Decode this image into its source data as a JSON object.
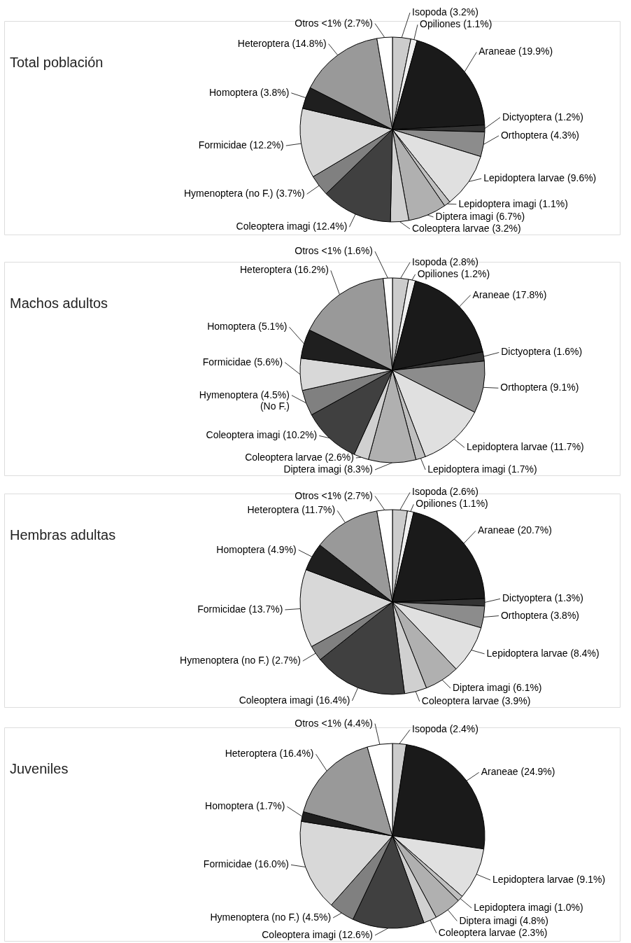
{
  "chart_data": [
    {
      "type": "pie",
      "title": "Total población",
      "categories": [
        "Isopoda (3.2%)",
        "Opiliones (1.1%)",
        "Araneae (19.9%)",
        "Dictyoptera (1.2%)",
        "Orthoptera (4.3%)",
        "Lepidoptera larvae (9.6%)",
        "Lepidoptera imagi (1.1%)",
        "Diptera imagi (6.7%)",
        "Coleoptera larvae (3.2%)",
        "Coleoptera imagi (12.4%)",
        "Hymenoptera (no F.) (3.7%)",
        "Formicidae (12.2%)",
        "Homoptera (3.8%)",
        "Heteroptera (14.8%)",
        "Otros <1% (2.7%)"
      ],
      "values": [
        3.2,
        1.1,
        19.9,
        1.2,
        4.3,
        9.6,
        1.1,
        6.7,
        3.2,
        12.4,
        3.7,
        12.2,
        3.8,
        14.8,
        2.7
      ],
      "colors": [
        "#cccccc",
        "#f0f0f0",
        "#1a1a1a",
        "#333333",
        "#8c8c8c",
        "#e0e0e0",
        "#bfbfbf",
        "#b0b0b0",
        "#d0d0d0",
        "#404040",
        "#808080",
        "#d8d8d8",
        "#1f1f1f",
        "#999999",
        "#ffffff"
      ]
    },
    {
      "type": "pie",
      "title": "Machos adultos",
      "categories": [
        "Isopoda (2.8%)",
        "Opiliones (1.2%)",
        "Araneae (17.8%)",
        "Dictyoptera (1.6%)",
        "Orthoptera (9.1%)",
        "Lepidoptera larvae (11.7%)",
        "Lepidoptera imagi (1.7%)",
        "Diptera imagi (8.3%)",
        "Coleoptera larvae (2.6%)",
        "Coleoptera imagi (10.2%)",
        "Hymenoptera (4.5%)\n(No F.)",
        "Formicidae (5.6%)",
        "Homoptera (5.1%)",
        "Heteroptera (16.2%)",
        "Otros <1% (1.6%)"
      ],
      "values": [
        2.8,
        1.2,
        17.8,
        1.6,
        9.1,
        11.7,
        1.7,
        8.3,
        2.6,
        10.2,
        4.5,
        5.6,
        5.1,
        16.2,
        1.6
      ],
      "colors": [
        "#cccccc",
        "#f0f0f0",
        "#1a1a1a",
        "#333333",
        "#8c8c8c",
        "#e0e0e0",
        "#bfbfbf",
        "#b0b0b0",
        "#d0d0d0",
        "#404040",
        "#808080",
        "#d8d8d8",
        "#1f1f1f",
        "#999999",
        "#ffffff"
      ]
    },
    {
      "type": "pie",
      "title": "Hembras adultas",
      "categories": [
        "Isopoda (2.6%)",
        "Opiliones (1.1%)",
        "Araneae (20.7%)",
        "Dictyoptera (1.3%)",
        "Orthoptera (3.8%)",
        "Lepidoptera larvae (8.4%)",
        "Diptera imagi (6.1%)",
        "Coleoptera larvae (3.9%)",
        "Coleoptera imagi (16.4%)",
        "Hymenoptera (no F.) (2.7%)",
        "Formicidae (13.7%)",
        "Homoptera (4.9%)",
        "Heteroptera (11.7%)",
        "Otros <1% (2.7%)"
      ],
      "values": [
        2.6,
        1.1,
        20.7,
        1.3,
        3.8,
        8.4,
        6.1,
        3.9,
        16.4,
        2.7,
        13.7,
        4.9,
        11.7,
        2.7
      ],
      "colors": [
        "#cccccc",
        "#f0f0f0",
        "#1a1a1a",
        "#333333",
        "#8c8c8c",
        "#e0e0e0",
        "#b0b0b0",
        "#d0d0d0",
        "#404040",
        "#808080",
        "#d8d8d8",
        "#1f1f1f",
        "#999999",
        "#ffffff"
      ]
    },
    {
      "type": "pie",
      "title": "Juveniles",
      "categories": [
        "Isopoda (2.4%)",
        "Araneae (24.9%)",
        "Lepidoptera larvae (9.1%)",
        "Lepidoptera imagi (1.0%)",
        "Diptera imagi (4.8%)",
        "Coleoptera larvae (2.3%)",
        "Coleoptera imagi (12.6%)",
        "Hymenoptera (no F.) (4.5%)",
        "Formicidae (16.0%)",
        "Homoptera (1.7%)",
        "Heteroptera (16.4%)",
        "Otros <1% (4.4%)"
      ],
      "values": [
        2.4,
        24.9,
        9.1,
        1.0,
        4.8,
        2.3,
        12.6,
        4.5,
        16.0,
        1.7,
        16.4,
        4.4
      ],
      "colors": [
        "#cccccc",
        "#1a1a1a",
        "#e0e0e0",
        "#bfbfbf",
        "#b0b0b0",
        "#d0d0d0",
        "#404040",
        "#808080",
        "#d8d8d8",
        "#1f1f1f",
        "#999999",
        "#ffffff"
      ]
    }
  ]
}
